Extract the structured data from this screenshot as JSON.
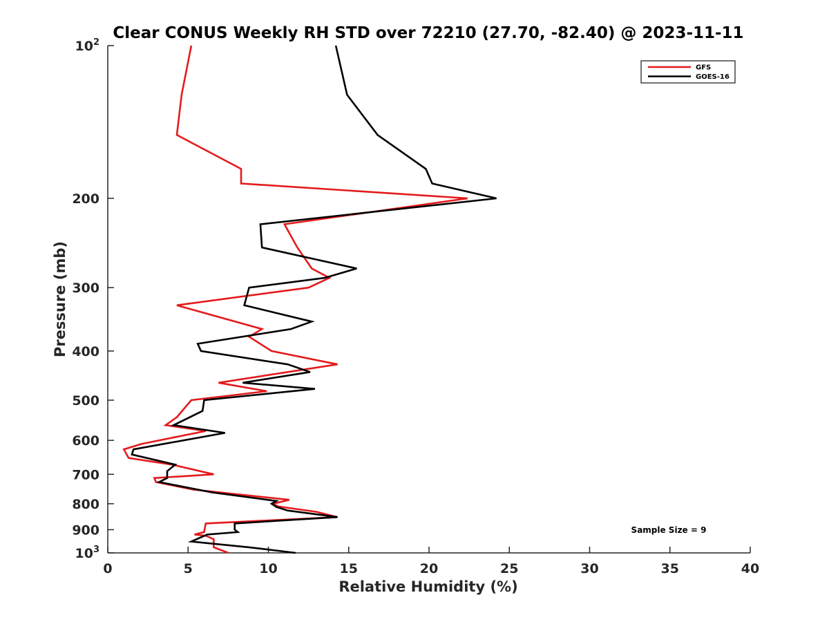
{
  "chart_data": {
    "type": "line",
    "title": "Clear CONUS Weekly RH STD over 72210 (27.70, -82.40) @ 2023-11-11",
    "xlabel": "Relative Humidity (%)",
    "ylabel": "Pressure (mb)",
    "xlim": [
      0,
      40
    ],
    "ylim": [
      100,
      1000
    ],
    "yscale": "log",
    "y_reversed": true,
    "grid": false,
    "legend_position": "top-right",
    "x_ticks": [
      0,
      5,
      10,
      15,
      20,
      25,
      30,
      35,
      40
    ],
    "x_tick_labels": [
      "0",
      "5",
      "10",
      "15",
      "20",
      "25",
      "30",
      "35",
      "40"
    ],
    "y_ticks": [
      100,
      200,
      300,
      400,
      500,
      600,
      700,
      800,
      900,
      1000
    ],
    "y_tick_labels": [
      {
        "base": "10",
        "sup": "2"
      },
      {
        "text": "200"
      },
      {
        "text": "300"
      },
      {
        "text": "400"
      },
      {
        "text": "500"
      },
      {
        "text": "600"
      },
      {
        "text": "700"
      },
      {
        "text": "800"
      },
      {
        "text": "900"
      },
      {
        "base": "10",
        "sup": "3"
      }
    ],
    "series": [
      {
        "name": "GFS",
        "color": "#e41a1c",
        "points": [
          [
            5.2,
            100
          ],
          [
            4.6,
            125
          ],
          [
            4.3,
            150
          ],
          [
            8.3,
            175
          ],
          [
            8.3,
            187
          ],
          [
            22.4,
            200
          ],
          [
            11.0,
            225
          ],
          [
            11.8,
            250
          ],
          [
            12.7,
            275
          ],
          [
            13.8,
            287
          ],
          [
            12.5,
            300
          ],
          [
            4.3,
            325
          ],
          [
            9.6,
            362
          ],
          [
            8.8,
            375
          ],
          [
            10.2,
            400
          ],
          [
            14.3,
            425
          ],
          [
            6.9,
            462
          ],
          [
            9.9,
            480
          ],
          [
            5.2,
            500
          ],
          [
            4.3,
            540
          ],
          [
            3.6,
            560
          ],
          [
            6.1,
            575
          ],
          [
            2.1,
            610
          ],
          [
            1.0,
            625
          ],
          [
            1.3,
            650
          ],
          [
            4.0,
            670
          ],
          [
            6.6,
            700
          ],
          [
            2.9,
            712
          ],
          [
            3.0,
            725
          ],
          [
            5.3,
            750
          ],
          [
            11.3,
            786
          ],
          [
            10.3,
            800
          ],
          [
            10.6,
            810
          ],
          [
            13.0,
            830
          ],
          [
            14.3,
            850
          ],
          [
            6.1,
            875
          ],
          [
            6.0,
            910
          ],
          [
            5.4,
            920
          ],
          [
            6.1,
            925
          ],
          [
            6.6,
            940
          ],
          [
            6.6,
            975
          ],
          [
            7.5,
            1000
          ]
        ]
      },
      {
        "name": "GOES-16",
        "color": "#000000",
        "points": [
          [
            14.2,
            100
          ],
          [
            14.9,
            125
          ],
          [
            16.8,
            150
          ],
          [
            19.8,
            175
          ],
          [
            20.2,
            187
          ],
          [
            24.2,
            200
          ],
          [
            9.5,
            225
          ],
          [
            9.6,
            250
          ],
          [
            15.5,
            275
          ],
          [
            13.5,
            287
          ],
          [
            8.8,
            300
          ],
          [
            8.5,
            325
          ],
          [
            12.7,
            350
          ],
          [
            11.4,
            362
          ],
          [
            5.6,
            387
          ],
          [
            5.8,
            400
          ],
          [
            11.2,
            425
          ],
          [
            12.6,
            440
          ],
          [
            8.4,
            462
          ],
          [
            12.9,
            475
          ],
          [
            6.0,
            500
          ],
          [
            5.9,
            525
          ],
          [
            4.1,
            560
          ],
          [
            7.3,
            580
          ],
          [
            1.6,
            625
          ],
          [
            1.5,
            640
          ],
          [
            4.2,
            670
          ],
          [
            3.7,
            690
          ],
          [
            3.7,
            712
          ],
          [
            3.2,
            725
          ],
          [
            6.5,
            760
          ],
          [
            10.5,
            790
          ],
          [
            10.2,
            800
          ],
          [
            10.5,
            812
          ],
          [
            11.2,
            825
          ],
          [
            14.3,
            850
          ],
          [
            7.9,
            875
          ],
          [
            7.9,
            900
          ],
          [
            8.1,
            910
          ],
          [
            6.2,
            920
          ],
          [
            5.2,
            950
          ],
          [
            8.8,
            975
          ],
          [
            11.7,
            1000
          ]
        ]
      }
    ],
    "annotation": "Sample Size = 9"
  }
}
